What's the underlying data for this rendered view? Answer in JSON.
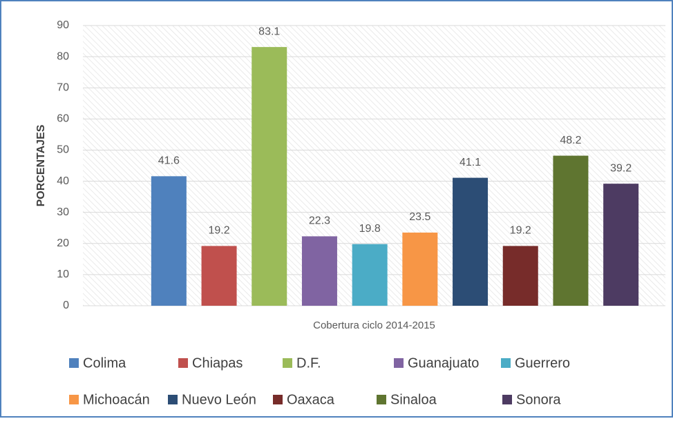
{
  "chart_data": {
    "type": "bar",
    "categories": [
      "Cobertura ciclo 2014-2015"
    ],
    "ylabel": "PORCENTAJES",
    "ylim": [
      0,
      90
    ],
    "yticks": [
      0,
      10,
      20,
      30,
      40,
      50,
      60,
      70,
      80,
      90
    ],
    "grid": true,
    "legend": "bottom",
    "series": [
      {
        "name": "Colima",
        "color": "#4f81bd",
        "values": [
          41.6
        ]
      },
      {
        "name": "Chiapas",
        "color": "#c0504d",
        "values": [
          19.2
        ]
      },
      {
        "name": "D.F.",
        "color": "#9bbb59",
        "values": [
          83.1
        ]
      },
      {
        "name": "Guanajuato",
        "color": "#8064a2",
        "values": [
          22.3
        ]
      },
      {
        "name": "Guerrero",
        "color": "#4bacc6",
        "values": [
          19.8
        ]
      },
      {
        "name": "Michoacán",
        "color": "#f79646",
        "values": [
          23.5
        ]
      },
      {
        "name": "Nuevo León",
        "color": "#2c4d75",
        "values": [
          41.1
        ]
      },
      {
        "name": "Oaxaca",
        "color": "#772c2a",
        "values": [
          19.2
        ]
      },
      {
        "name": "Sinaloa",
        "color": "#5f7530",
        "values": [
          48.2
        ]
      },
      {
        "name": "Sonora",
        "color": "#4d3b62",
        "values": [
          39.2
        ]
      }
    ]
  }
}
